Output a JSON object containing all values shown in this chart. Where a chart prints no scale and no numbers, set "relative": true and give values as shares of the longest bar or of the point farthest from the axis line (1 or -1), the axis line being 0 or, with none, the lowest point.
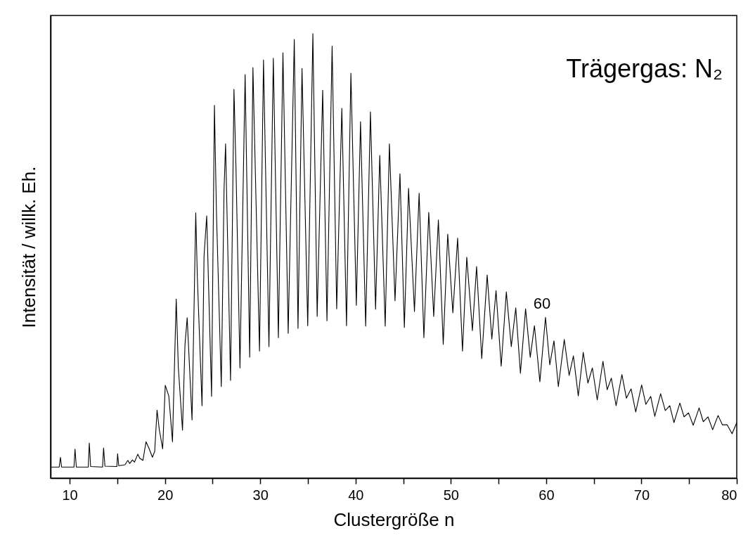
{
  "chart_data": {
    "type": "line",
    "xlabel": "Clustergröße n",
    "ylabel": "Intensität / willk. Eh.",
    "relative": true,
    "grid": false,
    "marker": "none",
    "line_style": "solid",
    "xlim": [
      8,
      80
    ],
    "xticks": [
      10,
      {
        "value": 15,
        "label": null
      },
      20,
      {
        "value": 25,
        "label": null
      },
      30,
      {
        "value": 35,
        "label": null
      },
      40,
      {
        "value": 45,
        "label": null
      },
      50,
      {
        "value": 55,
        "label": null
      },
      60,
      {
        "value": 65,
        "label": null
      },
      70,
      {
        "value": 75,
        "label": null
      },
      80
    ],
    "annotations": [
      "Trägergas: N₂",
      {
        "text": "60",
        "x": 59.93,
        "y": 0.362
      }
    ],
    "x": [
      8,
      8.9,
      9.03,
      9.15,
      10.45,
      10.56,
      10.7,
      11.95,
      12.06,
      12.2,
      13.45,
      13.56,
      13.7,
      14.95,
      15.03,
      15.15,
      15.8,
      16.1,
      16.3,
      16.58,
      16.8,
      17.15,
      17.35,
      17.69,
      18.01,
      18.31,
      18.68,
      18.92,
      19.17,
      19.4,
      19.76,
      20.03,
      20.4,
      20.79,
      21.18,
      21.4,
      21.84,
      22.1,
      22.33,
      22.84,
      23.23,
      23.4,
      23.89,
      24.1,
      24.38,
      24.89,
      25.19,
      25.4,
      25.91,
      26.2,
      26.36,
      26.88,
      27.24,
      27.45,
      27.87,
      28.41,
      28.89,
      29.23,
      29.92,
      30.34,
      30.91,
      31.37,
      31.9,
      32.38,
      32.93,
      33.57,
      33.96,
      34.38,
      34.98,
      35.52,
      35.97,
      36.55,
      37.0,
      37.54,
      38.02,
      38.56,
      39.05,
      39.51,
      40.08,
      40.52,
      41.06,
      41.56,
      42.1,
      42.54,
      43.11,
      43.55,
      44.14,
      44.66,
      45.12,
      45.56,
      46.18,
      46.67,
      47.17,
      47.68,
      48.2,
      48.69,
      49.2,
      49.67,
      50.21,
      50.71,
      51.22,
      51.67,
      52.26,
      52.7,
      53.24,
      53.81,
      54.3,
      54.74,
      55.28,
      55.82,
      56.34,
      56.81,
      57.3,
      57.84,
      58.33,
      58.77,
      59.34,
      59.93,
      60.38,
      60.82,
      61.28,
      61.9,
      62.41,
      62.86,
      63.37,
      63.89,
      64.38,
      64.85,
      65.36,
      65.96,
      66.4,
      66.84,
      67.34,
      67.95,
      68.42,
      68.91,
      69.4,
      70.02,
      70.46,
      70.97,
      71.4,
      72.01,
      72.5,
      72.97,
      73.41,
      74.03,
      74.47,
      74.94,
      75.43,
      76.05,
      76.49,
      76.98,
      77.47,
      78.04,
      78.5,
      79.0,
      79.51,
      80
    ],
    "series": [
      {
        "color": "#000000",
        "values": [
          0.025,
          0.025,
          0.047,
          0.025,
          0.025,
          0.065,
          0.025,
          0.025,
          0.079,
          0.026,
          0.025,
          0.068,
          0.027,
          0.026,
          0.055,
          0.028,
          0.03,
          0.04,
          0.033,
          0.041,
          0.036,
          0.054,
          0.045,
          0.04,
          0.082,
          0.068,
          0.047,
          0.06,
          0.153,
          0.11,
          0.066,
          0.209,
          0.185,
          0.082,
          0.403,
          0.25,
          0.108,
          0.3,
          0.361,
          0.131,
          0.597,
          0.45,
          0.163,
          0.5,
          0.59,
          0.184,
          0.839,
          0.6,
          0.206,
          0.65,
          0.752,
          0.22,
          0.875,
          0.7,
          0.248,
          0.908,
          0.272,
          0.924,
          0.286,
          0.941,
          0.296,
          0.945,
          0.316,
          0.957,
          0.326,
          0.987,
          0.337,
          0.922,
          0.343,
          1.0,
          0.364,
          0.873,
          0.354,
          0.972,
          0.381,
          0.832,
          0.343,
          0.911,
          0.389,
          0.802,
          0.342,
          0.824,
          0.38,
          0.726,
          0.342,
          0.752,
          0.399,
          0.685,
          0.339,
          0.652,
          0.375,
          0.641,
          0.316,
          0.598,
          0.364,
          0.581,
          0.301,
          0.549,
          0.372,
          0.54,
          0.286,
          0.497,
          0.332,
          0.476,
          0.269,
          0.457,
          0.313,
          0.422,
          0.252,
          0.419,
          0.296,
          0.383,
          0.236,
          0.381,
          0.272,
          0.343,
          0.217,
          0.362,
          0.255,
          0.309,
          0.206,
          0.312,
          0.231,
          0.275,
          0.185,
          0.283,
          0.214,
          0.248,
          0.176,
          0.263,
          0.199,
          0.225,
          0.163,
          0.233,
          0.18,
          0.201,
          0.149,
          0.21,
          0.166,
          0.184,
          0.139,
          0.19,
          0.152,
          0.163,
          0.125,
          0.169,
          0.138,
          0.147,
          0.119,
          0.158,
          0.127,
          0.138,
          0.109,
          0.141,
          0.12,
          0.12,
          0.1,
          0.125
        ]
      }
    ]
  }
}
